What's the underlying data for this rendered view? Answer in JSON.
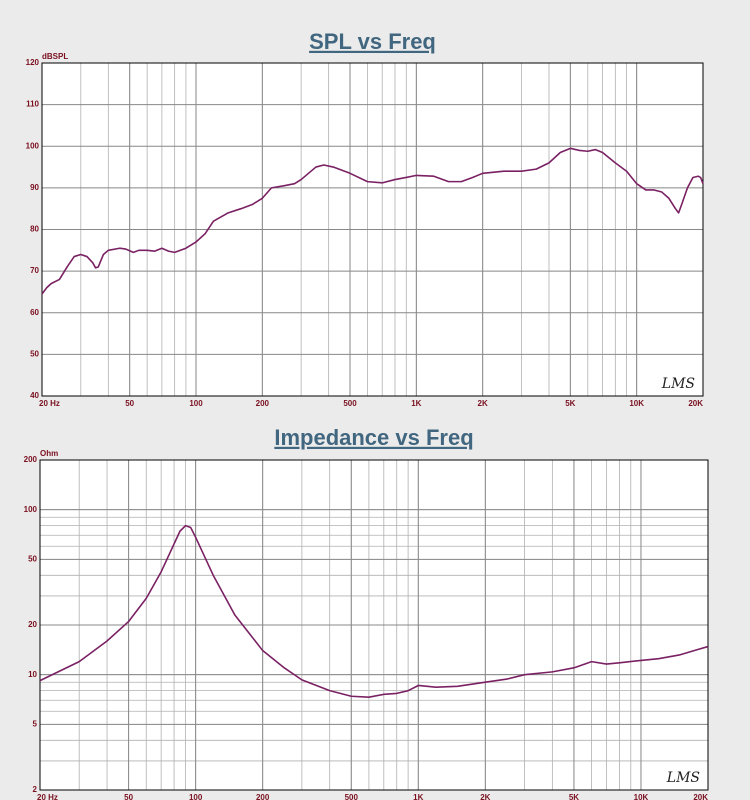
{
  "chart_data": [
    {
      "type": "line",
      "title": "SPL vs Freq",
      "ylabel": "dBSPL",
      "watermark": "LMS",
      "xscale": "log",
      "grid": true,
      "xlim": [
        20,
        20000
      ],
      "ylim": [
        40,
        120
      ],
      "xticks": [
        {
          "value": 20,
          "label": "20  Hz"
        },
        50,
        100,
        200,
        500,
        {
          "value": 1000,
          "label": "1K"
        },
        {
          "value": 2000,
          "label": "2K"
        },
        {
          "value": 5000,
          "label": "5K"
        },
        {
          "value": 10000,
          "label": "10K"
        },
        {
          "value": 20000,
          "label": "20K"
        }
      ],
      "yticks": [
        40,
        50,
        60,
        70,
        80,
        90,
        100,
        110,
        120
      ],
      "x": [
        20,
        21,
        22,
        24,
        26,
        28,
        30,
        32,
        34,
        35,
        36,
        38,
        40,
        45,
        48,
        52,
        55,
        60,
        65,
        70,
        75,
        80,
        90,
        100,
        110,
        120,
        140,
        160,
        180,
        200,
        220,
        250,
        280,
        300,
        350,
        380,
        420,
        500,
        600,
        700,
        800,
        900,
        1000,
        1200,
        1400,
        1600,
        1800,
        2000,
        2500,
        3000,
        3500,
        4000,
        4500,
        5000,
        5500,
        6000,
        6500,
        7000,
        8000,
        9000,
        10000,
        11000,
        12000,
        13000,
        14000,
        15000,
        15500,
        16000,
        17000,
        18000,
        19000,
        19500,
        20000
      ],
      "series": [
        {
          "name": "SPL",
          "color": "#7a2163",
          "values": [
            64.5,
            66,
            67,
            68,
            71,
            73.5,
            74,
            73.5,
            72,
            70.8,
            71,
            74,
            75,
            75.5,
            75.3,
            74.5,
            75,
            75,
            74.8,
            75.5,
            74.8,
            74.5,
            75.5,
            77,
            79,
            82,
            84,
            85,
            86,
            87.5,
            90,
            90.5,
            91,
            92,
            95,
            95.5,
            95,
            93.5,
            91.5,
            91.2,
            92,
            92.5,
            93,
            92.8,
            91.5,
            91.5,
            92.5,
            93.5,
            94,
            94,
            94.5,
            96,
            98.5,
            99.5,
            99,
            98.8,
            99.2,
            98.5,
            96,
            94,
            91,
            89.5,
            89.5,
            89,
            87.5,
            85,
            84,
            86,
            90,
            92.5,
            92.8,
            92.5,
            91
          ]
        }
      ]
    },
    {
      "type": "line",
      "title": "Impedance vs Freq",
      "ylabel": "Ohm",
      "watermark": "LMS",
      "xscale": "log",
      "yscale": "log",
      "grid": true,
      "xlim": [
        20,
        20000
      ],
      "ylim": [
        2,
        200
      ],
      "xticks": [
        {
          "value": 20,
          "label": "20  Hz"
        },
        50,
        100,
        200,
        500,
        {
          "value": 1000,
          "label": "1K"
        },
        {
          "value": 2000,
          "label": "2K"
        },
        {
          "value": 5000,
          "label": "5K"
        },
        {
          "value": 10000,
          "label": "10K"
        },
        {
          "value": 20000,
          "label": "20K"
        }
      ],
      "yticks": [
        2,
        5,
        10,
        20,
        50,
        100,
        200
      ],
      "x": [
        20,
        30,
        40,
        50,
        60,
        70,
        80,
        85,
        90,
        95,
        100,
        120,
        150,
        200,
        250,
        300,
        400,
        500,
        600,
        700,
        800,
        900,
        1000,
        1200,
        1500,
        2000,
        2500,
        3000,
        4000,
        5000,
        5500,
        6000,
        7000,
        8000,
        10000,
        12000,
        15000,
        18000,
        20000
      ],
      "series": [
        {
          "name": "Impedance",
          "color": "#7a2163",
          "values": [
            9.2,
            12,
            16,
            21,
            29,
            42,
            62,
            74,
            80,
            78,
            68,
            40,
            23,
            14,
            11,
            9.3,
            8,
            7.4,
            7.3,
            7.6,
            7.7,
            8,
            8.6,
            8.4,
            8.5,
            9,
            9.4,
            10,
            10.4,
            11,
            11.5,
            12,
            11.6,
            11.8,
            12.2,
            12.5,
            13.2,
            14.2,
            14.8
          ]
        }
      ]
    }
  ]
}
